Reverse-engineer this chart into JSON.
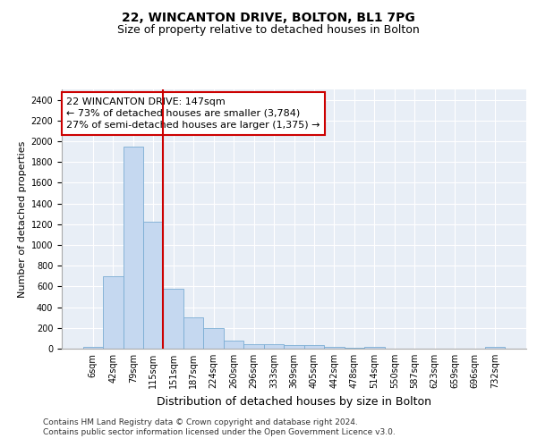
{
  "title1": "22, WINCANTON DRIVE, BOLTON, BL1 7PG",
  "title2": "Size of property relative to detached houses in Bolton",
  "xlabel": "Distribution of detached houses by size in Bolton",
  "ylabel": "Number of detached properties",
  "categories": [
    "6sqm",
    "42sqm",
    "79sqm",
    "115sqm",
    "151sqm",
    "187sqm",
    "224sqm",
    "260sqm",
    "296sqm",
    "333sqm",
    "369sqm",
    "405sqm",
    "442sqm",
    "478sqm",
    "514sqm",
    "550sqm",
    "587sqm",
    "623sqm",
    "659sqm",
    "696sqm",
    "732sqm"
  ],
  "values": [
    15,
    700,
    1950,
    1225,
    575,
    305,
    200,
    80,
    45,
    40,
    35,
    35,
    20,
    5,
    15,
    0,
    0,
    0,
    0,
    0,
    15
  ],
  "bar_color": "#c5d8f0",
  "bar_edge_color": "#7aadd4",
  "vline_color": "#cc0000",
  "vline_index": 4,
  "annotation_text": "22 WINCANTON DRIVE: 147sqm\n← 73% of detached houses are smaller (3,784)\n27% of semi-detached houses are larger (1,375) →",
  "annotation_box_color": "#cc0000",
  "ylim": [
    0,
    2500
  ],
  "yticks": [
    0,
    200,
    400,
    600,
    800,
    1000,
    1200,
    1400,
    1600,
    1800,
    2000,
    2200,
    2400
  ],
  "footer_text": "Contains HM Land Registry data © Crown copyright and database right 2024.\nContains public sector information licensed under the Open Government Licence v3.0.",
  "bg_color": "#e8eef6",
  "grid_color": "#ffffff",
  "title1_fontsize": 10,
  "title2_fontsize": 9,
  "xlabel_fontsize": 9,
  "ylabel_fontsize": 8,
  "tick_fontsize": 7,
  "annotation_fontsize": 8,
  "footer_fontsize": 6.5
}
